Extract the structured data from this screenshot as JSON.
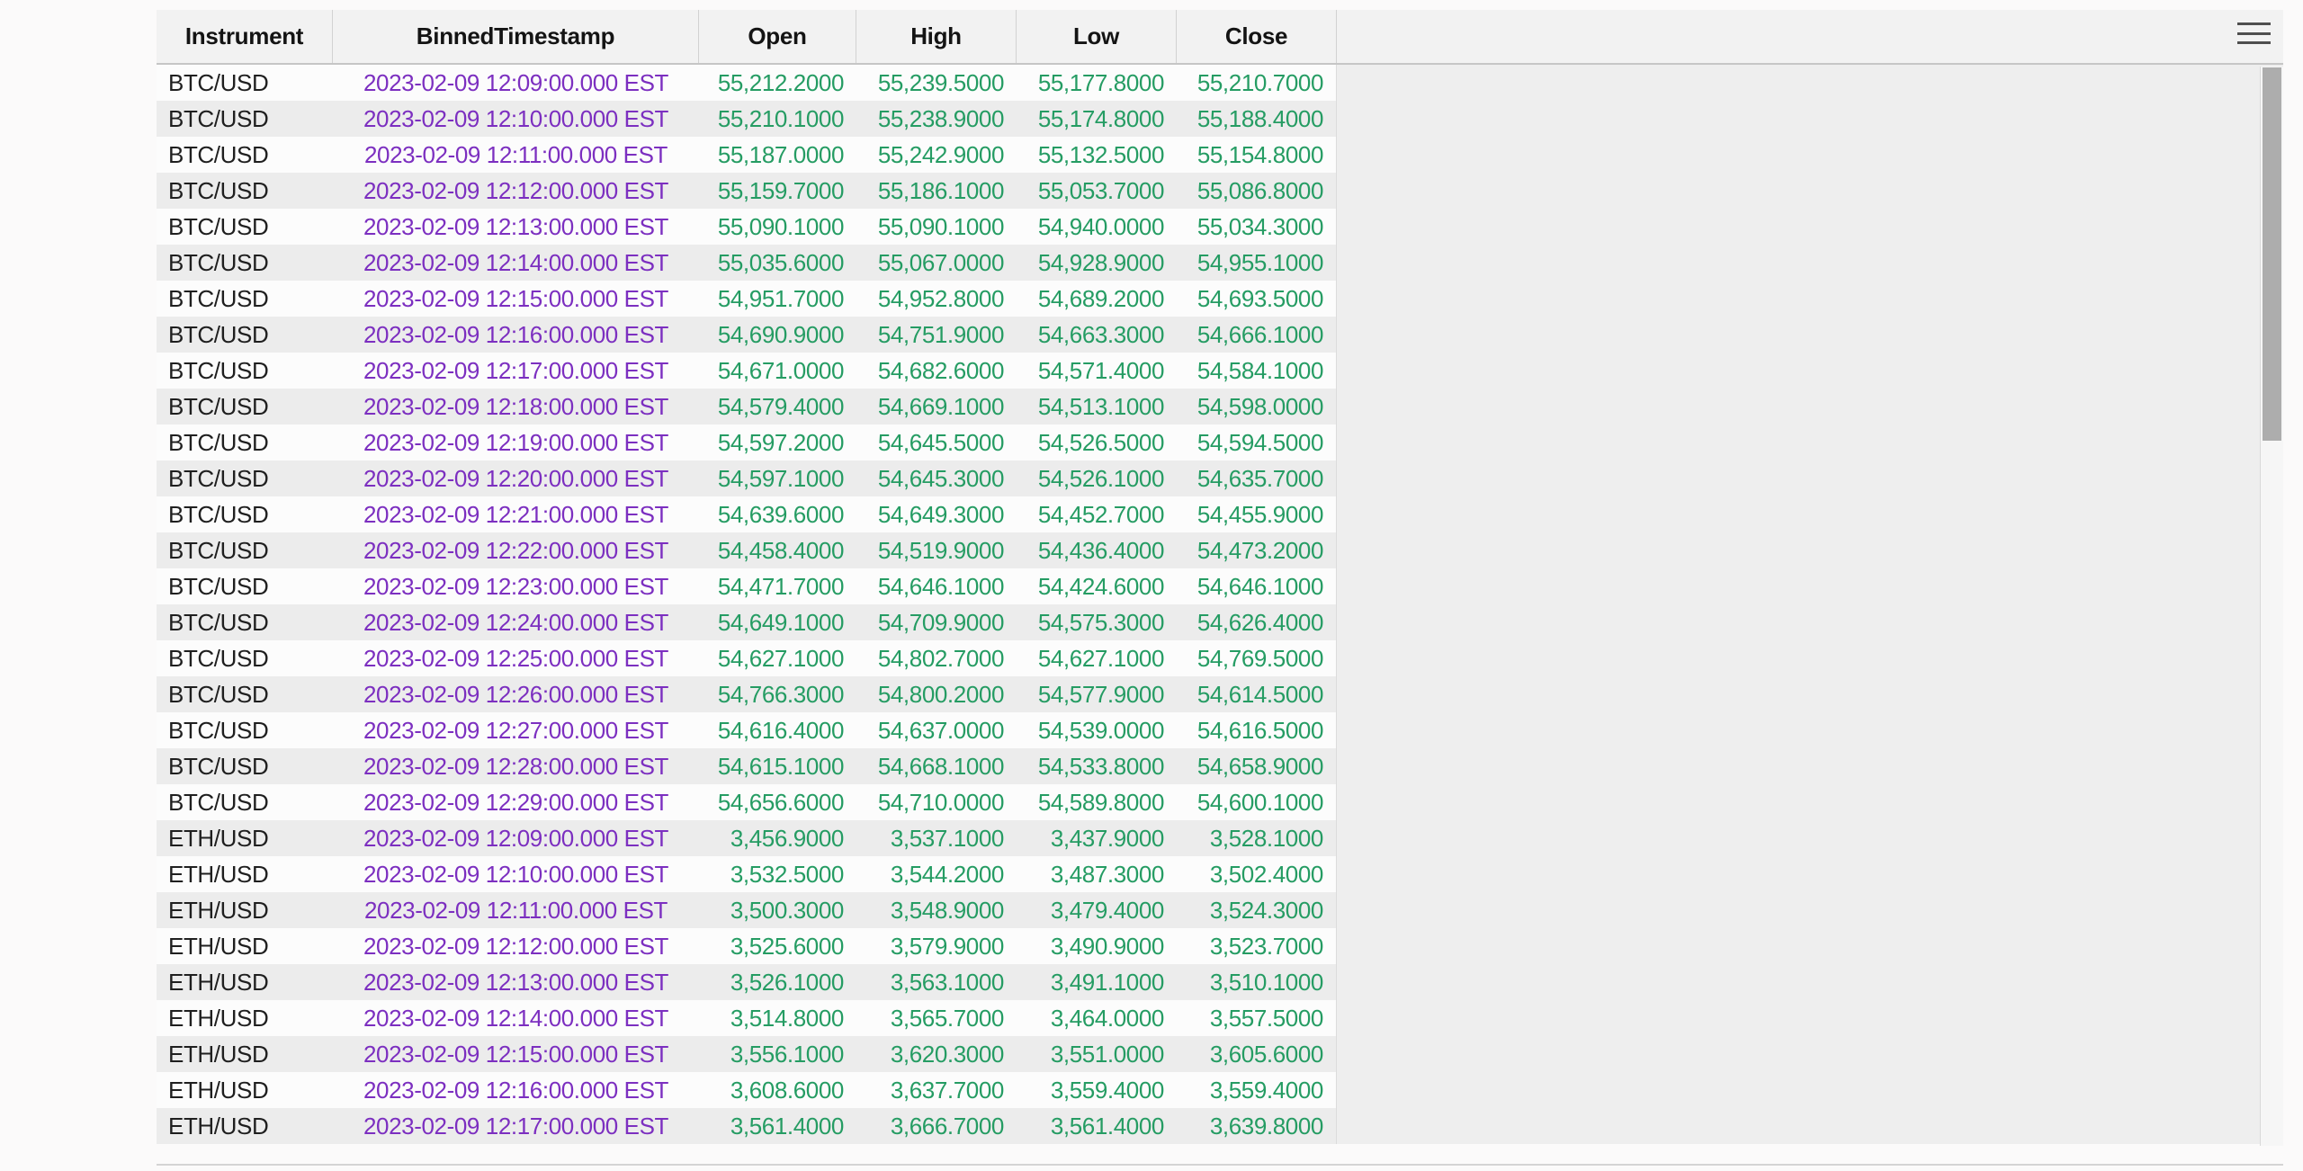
{
  "table": {
    "columns": [
      "Instrument",
      "BinnedTimestamp",
      "Open",
      "High",
      "Low",
      "Close"
    ],
    "rows": [
      [
        "BTC/USD",
        "2023-02-09 12:09:00.000 EST",
        "55,212.2000",
        "55,239.5000",
        "55,177.8000",
        "55,210.7000"
      ],
      [
        "BTC/USD",
        "2023-02-09 12:10:00.000 EST",
        "55,210.1000",
        "55,238.9000",
        "55,174.8000",
        "55,188.4000"
      ],
      [
        "BTC/USD",
        "2023-02-09 12:11:00.000 EST",
        "55,187.0000",
        "55,242.9000",
        "55,132.5000",
        "55,154.8000"
      ],
      [
        "BTC/USD",
        "2023-02-09 12:12:00.000 EST",
        "55,159.7000",
        "55,186.1000",
        "55,053.7000",
        "55,086.8000"
      ],
      [
        "BTC/USD",
        "2023-02-09 12:13:00.000 EST",
        "55,090.1000",
        "55,090.1000",
        "54,940.0000",
        "55,034.3000"
      ],
      [
        "BTC/USD",
        "2023-02-09 12:14:00.000 EST",
        "55,035.6000",
        "55,067.0000",
        "54,928.9000",
        "54,955.1000"
      ],
      [
        "BTC/USD",
        "2023-02-09 12:15:00.000 EST",
        "54,951.7000",
        "54,952.8000",
        "54,689.2000",
        "54,693.5000"
      ],
      [
        "BTC/USD",
        "2023-02-09 12:16:00.000 EST",
        "54,690.9000",
        "54,751.9000",
        "54,663.3000",
        "54,666.1000"
      ],
      [
        "BTC/USD",
        "2023-02-09 12:17:00.000 EST",
        "54,671.0000",
        "54,682.6000",
        "54,571.4000",
        "54,584.1000"
      ],
      [
        "BTC/USD",
        "2023-02-09 12:18:00.000 EST",
        "54,579.4000",
        "54,669.1000",
        "54,513.1000",
        "54,598.0000"
      ],
      [
        "BTC/USD",
        "2023-02-09 12:19:00.000 EST",
        "54,597.2000",
        "54,645.5000",
        "54,526.5000",
        "54,594.5000"
      ],
      [
        "BTC/USD",
        "2023-02-09 12:20:00.000 EST",
        "54,597.1000",
        "54,645.3000",
        "54,526.1000",
        "54,635.7000"
      ],
      [
        "BTC/USD",
        "2023-02-09 12:21:00.000 EST",
        "54,639.6000",
        "54,649.3000",
        "54,452.7000",
        "54,455.9000"
      ],
      [
        "BTC/USD",
        "2023-02-09 12:22:00.000 EST",
        "54,458.4000",
        "54,519.9000",
        "54,436.4000",
        "54,473.2000"
      ],
      [
        "BTC/USD",
        "2023-02-09 12:23:00.000 EST",
        "54,471.7000",
        "54,646.1000",
        "54,424.6000",
        "54,646.1000"
      ],
      [
        "BTC/USD",
        "2023-02-09 12:24:00.000 EST",
        "54,649.1000",
        "54,709.9000",
        "54,575.3000",
        "54,626.4000"
      ],
      [
        "BTC/USD",
        "2023-02-09 12:25:00.000 EST",
        "54,627.1000",
        "54,802.7000",
        "54,627.1000",
        "54,769.5000"
      ],
      [
        "BTC/USD",
        "2023-02-09 12:26:00.000 EST",
        "54,766.3000",
        "54,800.2000",
        "54,577.9000",
        "54,614.5000"
      ],
      [
        "BTC/USD",
        "2023-02-09 12:27:00.000 EST",
        "54,616.4000",
        "54,637.0000",
        "54,539.0000",
        "54,616.5000"
      ],
      [
        "BTC/USD",
        "2023-02-09 12:28:00.000 EST",
        "54,615.1000",
        "54,668.1000",
        "54,533.8000",
        "54,658.9000"
      ],
      [
        "BTC/USD",
        "2023-02-09 12:29:00.000 EST",
        "54,656.6000",
        "54,710.0000",
        "54,589.8000",
        "54,600.1000"
      ],
      [
        "ETH/USD",
        "2023-02-09 12:09:00.000 EST",
        "3,456.9000",
        "3,537.1000",
        "3,437.9000",
        "3,528.1000"
      ],
      [
        "ETH/USD",
        "2023-02-09 12:10:00.000 EST",
        "3,532.5000",
        "3,544.2000",
        "3,487.3000",
        "3,502.4000"
      ],
      [
        "ETH/USD",
        "2023-02-09 12:11:00.000 EST",
        "3,500.3000",
        "3,548.9000",
        "3,479.4000",
        "3,524.3000"
      ],
      [
        "ETH/USD",
        "2023-02-09 12:12:00.000 EST",
        "3,525.6000",
        "3,579.9000",
        "3,490.9000",
        "3,523.7000"
      ],
      [
        "ETH/USD",
        "2023-02-09 12:13:00.000 EST",
        "3,526.1000",
        "3,563.1000",
        "3,491.1000",
        "3,510.1000"
      ],
      [
        "ETH/USD",
        "2023-02-09 12:14:00.000 EST",
        "3,514.8000",
        "3,565.7000",
        "3,464.0000",
        "3,557.5000"
      ],
      [
        "ETH/USD",
        "2023-02-09 12:15:00.000 EST",
        "3,556.1000",
        "3,620.3000",
        "3,551.0000",
        "3,605.6000"
      ],
      [
        "ETH/USD",
        "2023-02-09 12:16:00.000 EST",
        "3,608.6000",
        "3,637.7000",
        "3,559.4000",
        "3,559.4000"
      ],
      [
        "ETH/USD",
        "2023-02-09 12:17:00.000 EST",
        "3,561.4000",
        "3,666.7000",
        "3,561.4000",
        "3,639.8000"
      ]
    ]
  },
  "icons": {
    "menu": "hamburger-menu-icon"
  },
  "colors": {
    "timestamp_text": "#7c2fc0",
    "number_text": "#259c63",
    "instrument_text": "#1f1f1f",
    "header_bg": "#f2f2f2",
    "row_stripe": "#ececec",
    "canvas_bg": "#eeeeee",
    "scrollbar_thumb": "#adadad"
  }
}
